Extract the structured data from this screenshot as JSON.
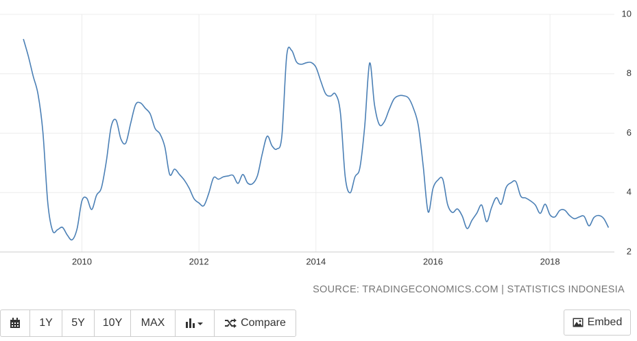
{
  "chart_data": {
    "type": "line",
    "x": [
      2009,
      2009.083,
      2009.167,
      2009.25,
      2009.333,
      2009.417,
      2009.5,
      2009.583,
      2009.667,
      2009.75,
      2009.833,
      2009.917,
      2010,
      2010.083,
      2010.167,
      2010.25,
      2010.333,
      2010.417,
      2010.5,
      2010.583,
      2010.667,
      2010.75,
      2010.833,
      2010.917,
      2011,
      2011.083,
      2011.167,
      2011.25,
      2011.333,
      2011.417,
      2011.5,
      2011.583,
      2011.667,
      2011.75,
      2011.833,
      2011.917,
      2012,
      2012.083,
      2012.167,
      2012.25,
      2012.333,
      2012.417,
      2012.5,
      2012.583,
      2012.667,
      2012.75,
      2012.833,
      2012.917,
      2013,
      2013.083,
      2013.167,
      2013.25,
      2013.333,
      2013.417,
      2013.5,
      2013.583,
      2013.667,
      2013.75,
      2013.833,
      2013.917,
      2014,
      2014.083,
      2014.167,
      2014.25,
      2014.333,
      2014.417,
      2014.5,
      2014.583,
      2014.667,
      2014.75,
      2014.833,
      2014.917,
      2015,
      2015.083,
      2015.167,
      2015.25,
      2015.333,
      2015.417,
      2015.5,
      2015.583,
      2015.667,
      2015.75,
      2015.833,
      2015.917,
      2016,
      2016.083,
      2016.167,
      2016.25,
      2016.333,
      2016.417,
      2016.5,
      2016.583,
      2016.667,
      2016.75,
      2016.833,
      2016.917,
      2017,
      2017.083,
      2017.167,
      2017.25,
      2017.333,
      2017.417,
      2017.5,
      2017.583,
      2017.667,
      2017.75,
      2017.833,
      2017.917,
      2018,
      2018.083,
      2018.167,
      2018.25,
      2018.333,
      2018.417,
      2018.5,
      2018.583,
      2018.667,
      2018.75,
      2018.833,
      2018.917,
      2019
    ],
    "series": [
      {
        "color": "#4a7fb5",
        "values": [
          9.17,
          8.6,
          7.92,
          7.31,
          6.04,
          3.65,
          2.71,
          2.75,
          2.83,
          2.57,
          2.41,
          2.78,
          3.72,
          3.81,
          3.43,
          3.91,
          4.16,
          5.05,
          6.22,
          6.44,
          5.8,
          5.67,
          6.33,
          6.96,
          7.02,
          6.84,
          6.65,
          6.16,
          5.98,
          5.54,
          4.61,
          4.79,
          4.61,
          4.42,
          4.15,
          3.79,
          3.65,
          3.56,
          3.97,
          4.5,
          4.45,
          4.53,
          4.56,
          4.58,
          4.31,
          4.61,
          4.32,
          4.3,
          4.57,
          5.31,
          5.9,
          5.57,
          5.47,
          5.9,
          8.61,
          8.79,
          8.4,
          8.32,
          8.37,
          8.38,
          8.22,
          7.75,
          7.32,
          7.25,
          7.32,
          6.7,
          4.53,
          3.99,
          4.53,
          4.83,
          6.23,
          8.36,
          6.96,
          6.29,
          6.38,
          6.79,
          7.15,
          7.26,
          7.26,
          7.18,
          6.83,
          6.25,
          4.89,
          3.35,
          4.14,
          4.42,
          4.45,
          3.6,
          3.33,
          3.45,
          3.21,
          2.79,
          3.07,
          3.31,
          3.58,
          3.02,
          3.49,
          3.83,
          3.61,
          4.17,
          4.33,
          4.37,
          3.88,
          3.82,
          3.72,
          3.58,
          3.3,
          3.61,
          3.25,
          3.18,
          3.4,
          3.41,
          3.23,
          3.12,
          3.18,
          3.2,
          2.88,
          3.16,
          3.23,
          3.13,
          2.82
        ]
      }
    ],
    "xlim": [
      2008.6,
      2019.1
    ],
    "xticks": [
      2010,
      2012,
      2014,
      2016,
      2018
    ],
    "ylim": [
      2,
      10
    ],
    "yticks": [
      2,
      4,
      6,
      8,
      10
    ],
    "grid": true,
    "source": "SOURCE: TRADINGECONOMICS.COM | STATISTICS INDONESIA"
  },
  "toolbar": {
    "buttons": [
      "1Y",
      "5Y",
      "10Y",
      "MAX"
    ],
    "compare": "Compare",
    "embed": "Embed"
  }
}
